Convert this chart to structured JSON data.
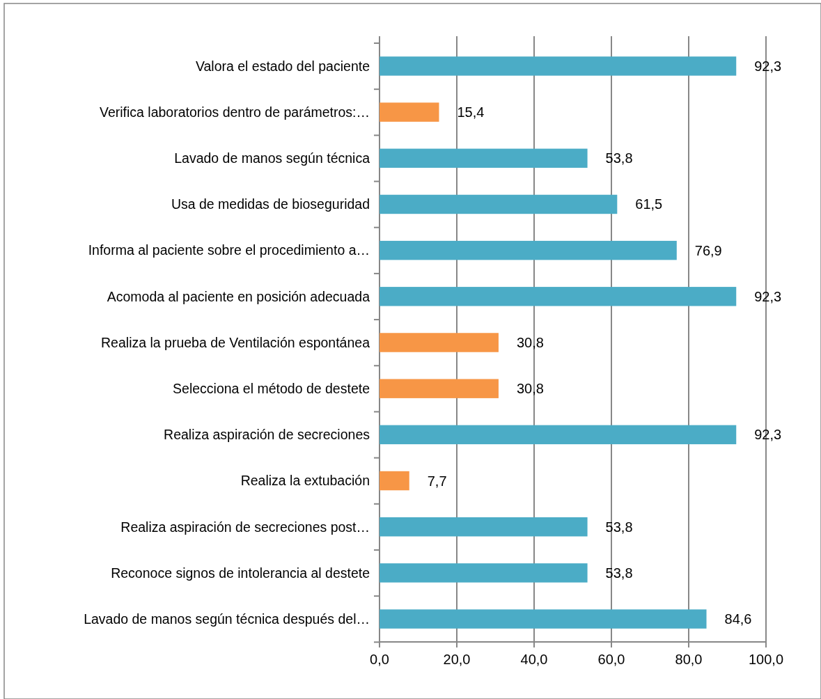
{
  "chart_data": {
    "type": "bar",
    "orientation": "horizontal",
    "categories": [
      "Valora el estado del paciente",
      "Verifica laboratorios dentro de parámetros:…",
      "Lavado de manos según técnica",
      "Usa de medidas de bioseguridad",
      "Informa al paciente sobre el procedimiento a…",
      "Acomoda al paciente en posición adecuada",
      "Realiza la prueba de Ventilación espontánea",
      "Selecciona el método de destete",
      "Realiza aspiración de secreciones",
      "Realiza la extubación",
      "Realiza aspiración de secreciones post…",
      "Reconoce signos de intolerancia al destete",
      "Lavado de manos según técnica después del…"
    ],
    "values": [
      92.3,
      15.4,
      53.8,
      61.5,
      76.9,
      92.3,
      30.8,
      30.8,
      92.3,
      7.7,
      53.8,
      53.8,
      84.6
    ],
    "colors": [
      "#4bacc6",
      "#f79646",
      "#4bacc6",
      "#4bacc6",
      "#4bacc6",
      "#4bacc6",
      "#f79646",
      "#f79646",
      "#4bacc6",
      "#f79646",
      "#4bacc6",
      "#4bacc6",
      "#4bacc6"
    ],
    "value_labels": [
      "92,3",
      "15,4",
      "53,8",
      "61,5",
      "76,9",
      "92,3",
      "30,8",
      "30,8",
      "92,3",
      "7,7",
      "53,8",
      "53,8",
      "84,6"
    ],
    "xlim": [
      0,
      100
    ],
    "xticks": [
      {
        "value": 0,
        "label": "0,0"
      },
      {
        "value": 20,
        "label": "20,0"
      },
      {
        "value": 40,
        "label": "40,0"
      },
      {
        "value": 60,
        "label": "60,0"
      },
      {
        "value": 80,
        "label": "80,0"
      },
      {
        "value": 100,
        "label": "100,0"
      }
    ],
    "grid": "x"
  }
}
